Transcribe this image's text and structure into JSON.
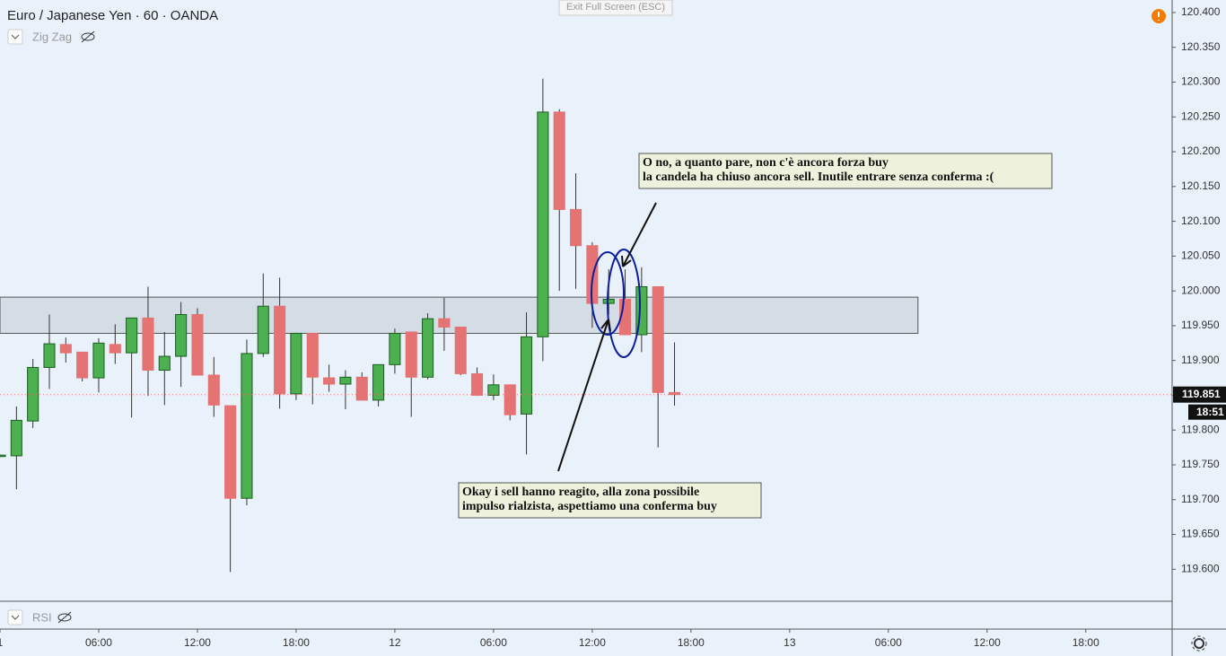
{
  "chart_data": {
    "type": "candlestick",
    "title": "Euro / Japanese Yen · 60 · OANDA",
    "indicators": [
      "Zig Zag",
      "RSI"
    ],
    "exit_button": "Exit Full Screen (ESC)",
    "x": [
      0,
      1,
      2,
      3,
      4,
      5,
      6,
      7,
      8,
      9,
      10,
      11,
      12,
      13,
      14,
      15,
      16,
      17,
      18,
      19,
      20,
      21,
      22,
      23,
      24,
      25,
      26,
      27,
      28,
      29,
      30,
      31,
      32,
      33,
      34,
      35,
      36,
      37,
      38,
      39,
      40,
      41
    ],
    "open": [
      119.762,
      119.763,
      119.813,
      119.89,
      119.923,
      119.912,
      119.875,
      119.923,
      119.911,
      119.961,
      119.886,
      119.906,
      119.966,
      119.879,
      119.835,
      119.702,
      119.91,
      119.978,
      119.852,
      119.939,
      119.875,
      119.866,
      119.876,
      119.843,
      119.894,
      119.941,
      119.876,
      119.96,
      119.948,
      119.881,
      119.85,
      119.865,
      119.823,
      119.934,
      120.257,
      120.117,
      120.065,
      119.982,
      119.988,
      119.937,
      120.006,
      119.854
    ],
    "high": [
      119.765,
      119.834,
      119.902,
      119.966,
      119.933,
      119.912,
      119.932,
      119.952,
      119.961,
      120.006,
      119.941,
      119.984,
      119.975,
      119.905,
      119.835,
      119.93,
      120.025,
      120.019,
      119.939,
      119.939,
      119.894,
      119.886,
      119.883,
      119.894,
      119.946,
      119.941,
      119.968,
      119.99,
      119.948,
      119.89,
      119.88,
      119.865,
      119.969,
      120.305,
      120.261,
      120.169,
      120.07,
      120.031,
      120.031,
      120.034,
      120.006,
      119.926
    ],
    "low": [
      119.761,
      119.715,
      119.803,
      119.859,
      119.897,
      119.87,
      119.854,
      119.895,
      119.818,
      119.849,
      119.836,
      119.862,
      119.879,
      119.819,
      119.596,
      119.692,
      119.905,
      119.831,
      119.843,
      119.837,
      119.855,
      119.83,
      119.843,
      119.834,
      119.881,
      119.819,
      119.873,
      119.914,
      119.879,
      119.849,
      119.843,
      119.814,
      119.765,
      119.899,
      120.0,
      120.003,
      119.947,
      119.966,
      119.937,
      119.912,
      119.775,
      119.835
    ],
    "close": [
      119.764,
      119.814,
      119.89,
      119.924,
      119.911,
      119.875,
      119.925,
      119.911,
      119.961,
      119.886,
      119.906,
      119.966,
      119.879,
      119.836,
      119.702,
      119.91,
      119.978,
      119.852,
      119.939,
      119.876,
      119.866,
      119.876,
      119.843,
      119.894,
      119.939,
      119.876,
      119.96,
      119.948,
      119.881,
      119.85,
      119.865,
      119.822,
      119.934,
      120.257,
      120.117,
      120.065,
      119.982,
      119.988,
      119.937,
      120.006,
      119.854,
      119.851
    ],
    "up_color": "#4caf50",
    "down_color": "#e57373",
    "xlim": [
      0,
      71.25
    ],
    "ylim": [
      119.554,
      120.418
    ],
    "xticks": [
      {
        "value": 0,
        "label": "1"
      },
      {
        "value": 6,
        "label": "06:00"
      },
      {
        "value": 12,
        "label": "12:00"
      },
      {
        "value": 18,
        "label": "18:00"
      },
      {
        "value": 24,
        "label": "12"
      },
      {
        "value": 30,
        "label": "06:00"
      },
      {
        "value": 36,
        "label": "12:00"
      },
      {
        "value": 42,
        "label": "18:00"
      },
      {
        "value": 48,
        "label": "13"
      },
      {
        "value": 54,
        "label": "06:00"
      },
      {
        "value": 60,
        "label": "12:00"
      },
      {
        "value": 66,
        "label": "18:00"
      }
    ],
    "yticks": [
      {
        "value": 120.4,
        "label": "120.400"
      },
      {
        "value": 120.35,
        "label": "120.350"
      },
      {
        "value": 120.3,
        "label": "120.300"
      },
      {
        "value": 120.25,
        "label": "120.250"
      },
      {
        "value": 120.2,
        "label": "120.200"
      },
      {
        "value": 120.15,
        "label": "120.150"
      },
      {
        "value": 120.1,
        "label": "120.100"
      },
      {
        "value": 120.05,
        "label": "120.050"
      },
      {
        "value": 120.0,
        "label": "120.000"
      },
      {
        "value": 119.95,
        "label": "119.950"
      },
      {
        "value": 119.9,
        "label": "119.900"
      },
      {
        "value": 119.85,
        "label": "119.850"
      },
      {
        "value": 119.8,
        "label": "119.800"
      },
      {
        "value": 119.75,
        "label": "119.750"
      },
      {
        "value": 119.7,
        "label": "119.700"
      },
      {
        "value": 119.65,
        "label": "119.650"
      },
      {
        "value": 119.6,
        "label": "119.600"
      }
    ],
    "last_price": 119.851,
    "countdown": "18:51",
    "zone": {
      "y": [
        119.939,
        119.991
      ],
      "x_end": 55.8
    },
    "annotations": [
      {
        "lines": [
          "O no, a quanto pare, non c'è ancora forza buy",
          "la candela ha chiuso ancora sell. Inutile entrare senza conferma :("
        ]
      },
      {
        "lines": [
          "Okay i sell hanno reagito, alla zona possibile",
          "impulso rialzista, aspettiamo una conferma buy"
        ]
      }
    ]
  }
}
